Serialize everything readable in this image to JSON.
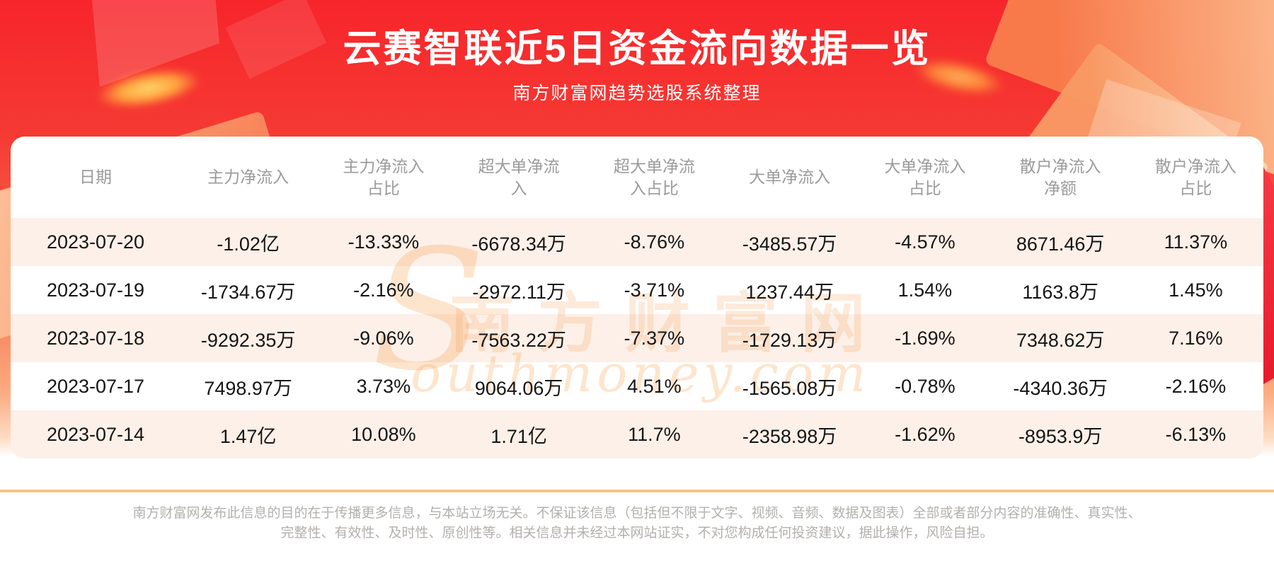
{
  "banner": {
    "title": "云赛智联近5日资金流向数据一览",
    "subtitle": "南方财富网趋势选股系统整理"
  },
  "chart_data": {
    "type": "table",
    "title": "云赛智联近5日资金流向数据一览",
    "columns": [
      "日期",
      "主力净流入",
      "主力净流入\n占比",
      "超大单净流\n入",
      "超大单净流\n入占比",
      "大单净流入",
      "大单净流入\n占比",
      "散户净流入\n净额",
      "散户净流入\n占比"
    ],
    "rows": [
      [
        "2023-07-20",
        "-1.02亿",
        "-13.33%",
        "-6678.34万",
        "-8.76%",
        "-3485.57万",
        "-4.57%",
        "8671.46万",
        "11.37%"
      ],
      [
        "2023-07-19",
        "-1734.67万",
        "-2.16%",
        "-2972.11万",
        "-3.71%",
        "1237.44万",
        "1.54%",
        "1163.8万",
        "1.45%"
      ],
      [
        "2023-07-18",
        "-9292.35万",
        "-9.06%",
        "-7563.22万",
        "-7.37%",
        "-1729.13万",
        "-1.69%",
        "7348.62万",
        "7.16%"
      ],
      [
        "2023-07-17",
        "7498.97万",
        "3.73%",
        "9064.06万",
        "4.51%",
        "-1565.08万",
        "-0.78%",
        "-4340.36万",
        "-2.16%"
      ],
      [
        "2023-07-14",
        "1.47亿",
        "10.08%",
        "1.71亿",
        "11.7%",
        "-2358.98万",
        "-1.62%",
        "-8953.9万",
        "-6.13%"
      ]
    ]
  },
  "watermark": {
    "initial": "S",
    "cn": "南方财富网",
    "en": "outhmoney.com"
  },
  "footer": {
    "line1": "南方财富网发布此信息的目的在于传播更多信息，与本站立场无关。不保证该信息（包括但不限于文字、视频、音频、数据及图表）全部或者部分内容的准确性、真实性、",
    "line2": "完整性、有效性、及时性、原创性等。相关信息并未经过本网站证实，不对您构成任何投资建议，据此操作，风险自担。"
  },
  "colors": {
    "banner_red_top": "#f7252b",
    "banner_red_bottom": "#fcab81",
    "row_stripe": "#fdf0e8",
    "header_text": "#9b9b9b",
    "cell_text": "#151515",
    "watermark_orange": "#f7a55e",
    "footer_divider": "#f8c488",
    "disclaimer_text": "#b3b0ac"
  }
}
